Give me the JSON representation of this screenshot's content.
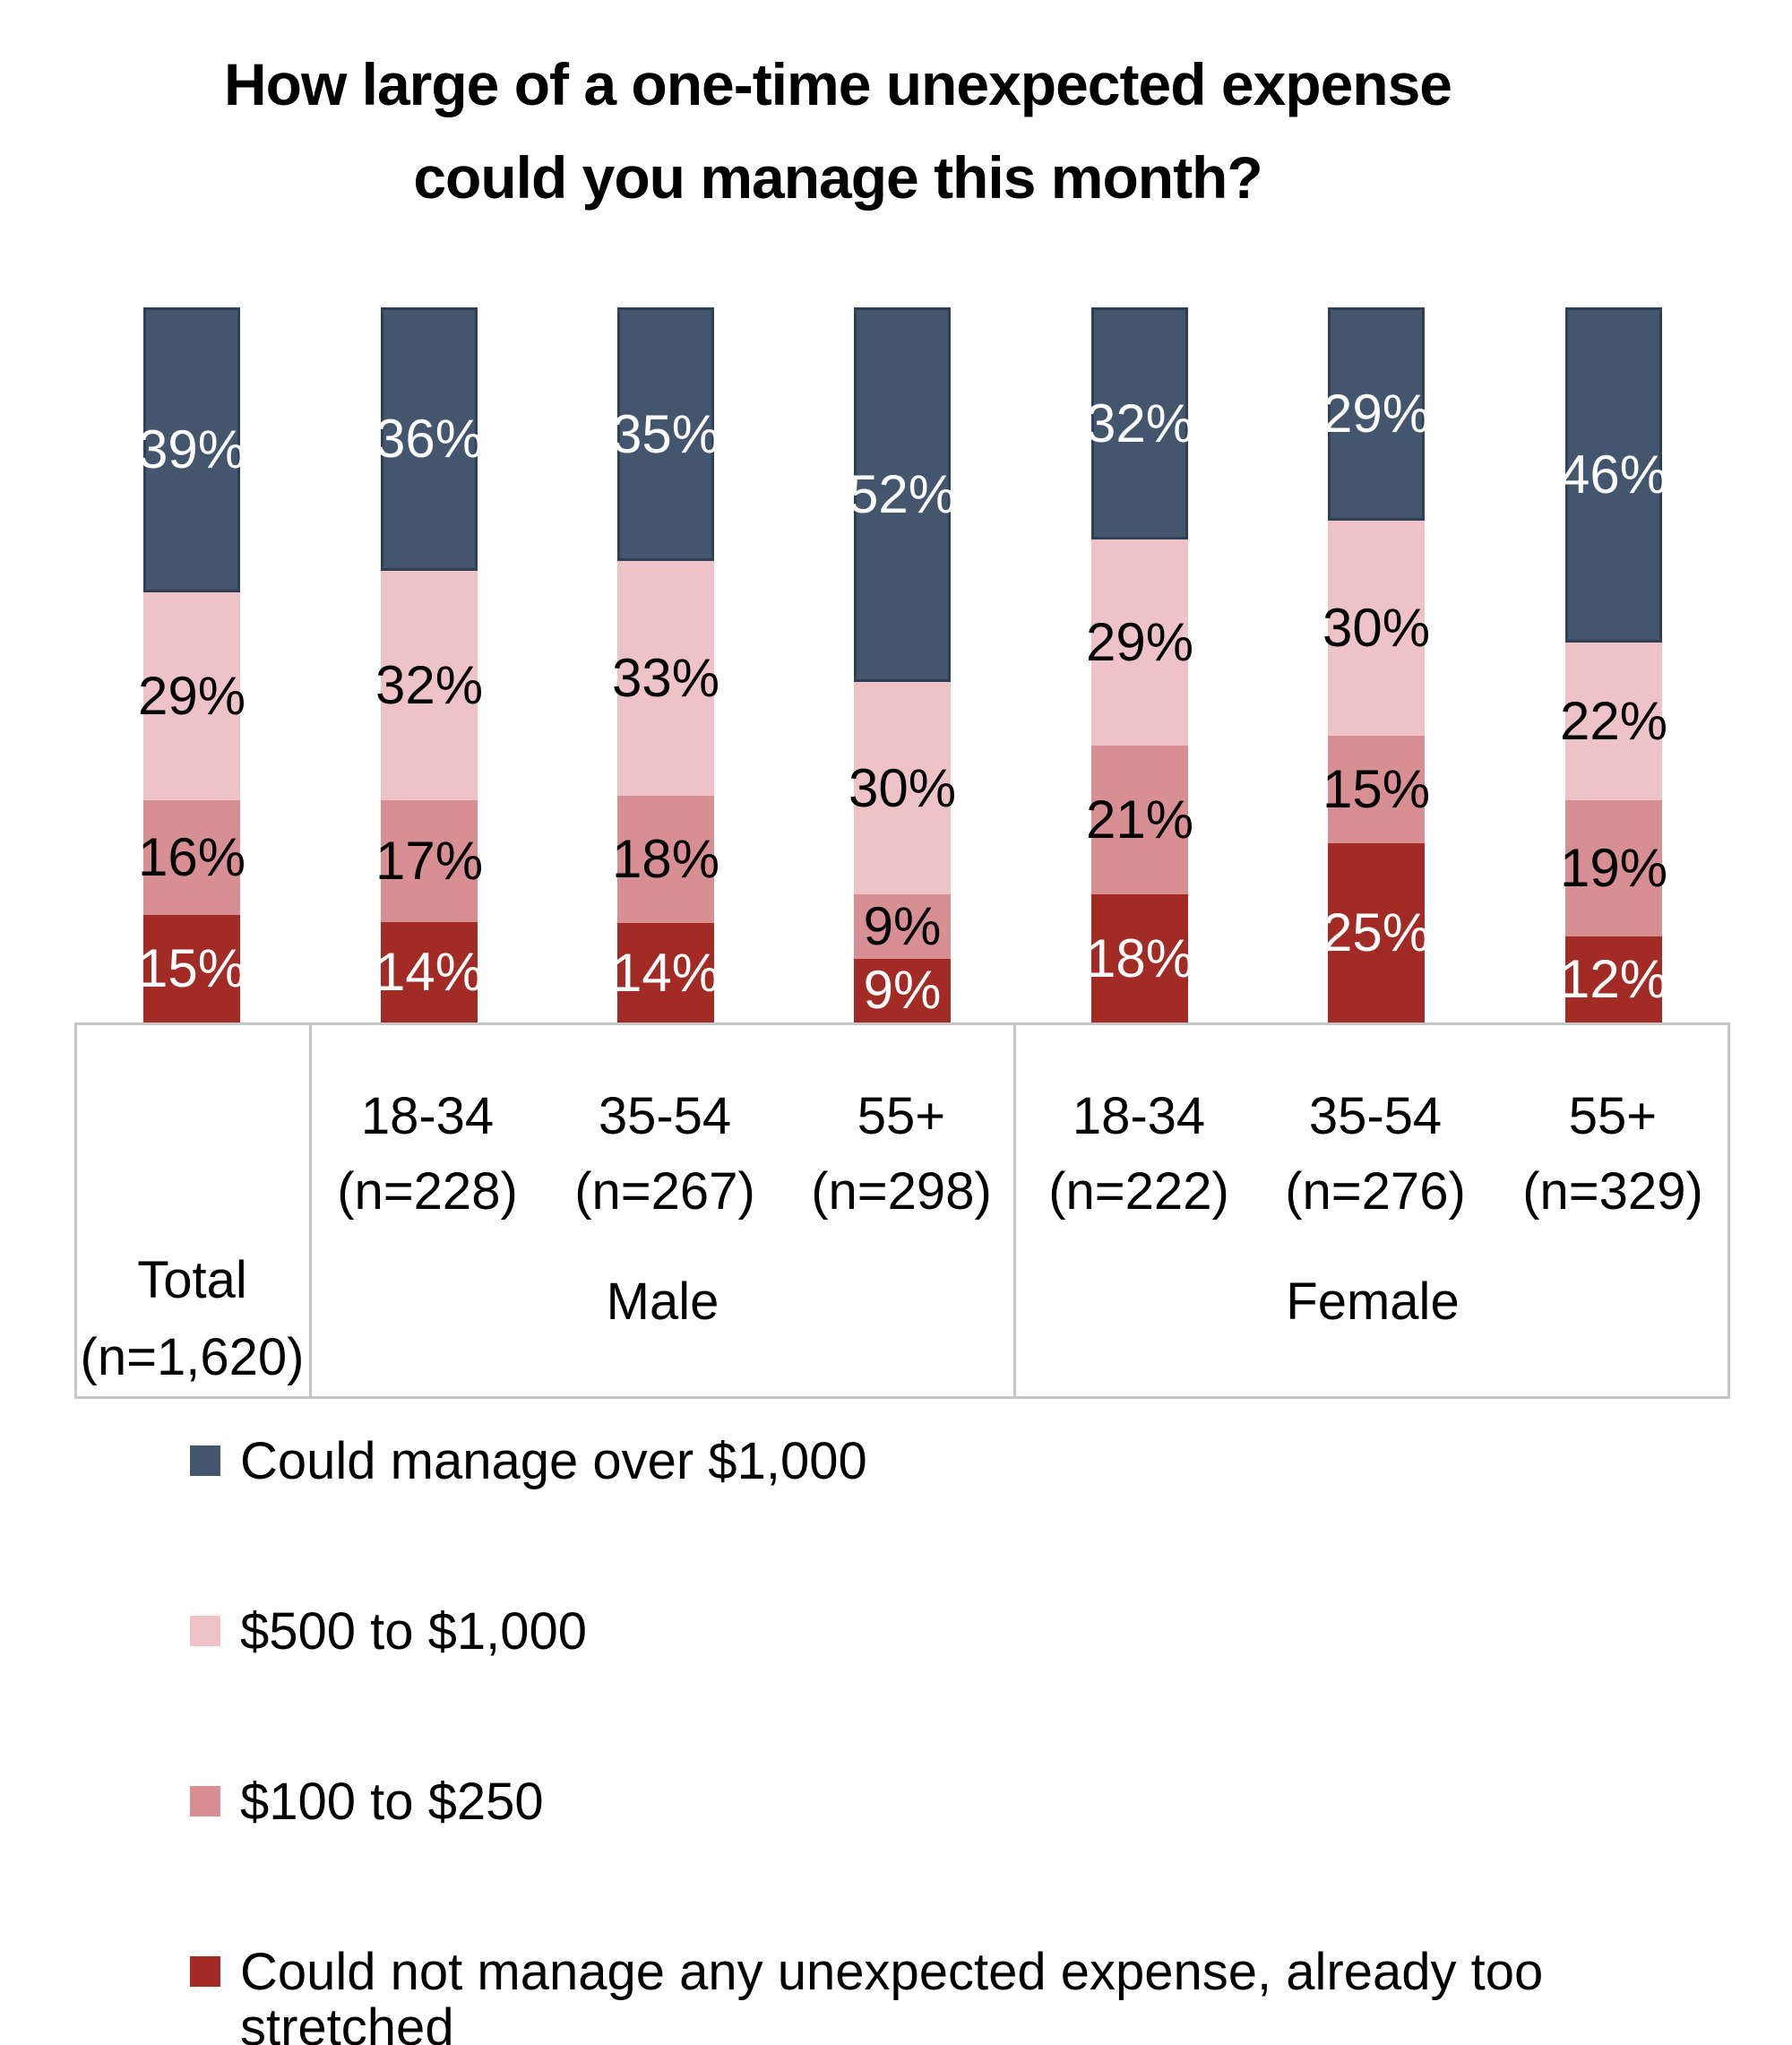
{
  "chart_data": {
    "type": "bar",
    "subtype": "stacked-100-percent",
    "title": "How large of a one-time unexpected expense could you manage this month?",
    "title_lines": [
      "How large of a one-time unexpected expense",
      "could you manage this month?"
    ],
    "value_suffix": "%",
    "ylim": [
      0,
      100
    ],
    "grid": false,
    "legend_position": "bottom-left",
    "series": [
      {
        "name": "Could manage over $1,000",
        "color": "#44566E",
        "border_color": "#2F3F55",
        "label_color": "#FFFFFF"
      },
      {
        "name": "$500 to $1,000",
        "color": "#EDC3C7",
        "label_color": "#000000"
      },
      {
        "name": "$100 to $250",
        "color": "#D78F94",
        "label_color": "#000000"
      },
      {
        "name": "Could not manage any unexpected expense, already too stretched",
        "color": "#A22B26",
        "label_color": "#FFFFFF"
      }
    ],
    "bars": [
      {
        "category": "Total (n=1,620)",
        "values": [
          39,
          29,
          16,
          15
        ]
      },
      {
        "category": "Male 18-34 (n=228)",
        "values": [
          36,
          32,
          17,
          14
        ]
      },
      {
        "category": "Male 35-54 (n=267)",
        "values": [
          35,
          33,
          18,
          14
        ]
      },
      {
        "category": "Male 55+ (n=298)",
        "values": [
          52,
          30,
          9,
          9
        ]
      },
      {
        "category": "Female 18-34 (n=222)",
        "values": [
          32,
          29,
          21,
          18
        ]
      },
      {
        "category": "Female 35-54 (n=276)",
        "values": [
          29,
          30,
          15,
          25
        ]
      },
      {
        "category": "Female 55+ (n=329)",
        "values": [
          46,
          22,
          19,
          12
        ]
      }
    ]
  },
  "axis_table": {
    "age_columns": [
      {
        "range": "18-34",
        "n": "(n=228)"
      },
      {
        "range": "35-54",
        "n": "(n=267)"
      },
      {
        "range": "55+",
        "n": "(n=298)"
      },
      {
        "range": "18-34",
        "n": "(n=222)"
      },
      {
        "range": "35-54",
        "n": "(n=276)"
      },
      {
        "range": "55+",
        "n": "(n=329)"
      }
    ],
    "groups": [
      {
        "label": "Total",
        "sub": "(n=1,620)"
      },
      {
        "label": "Male",
        "sub": ""
      },
      {
        "label": "Female",
        "sub": ""
      }
    ]
  },
  "colors": {
    "background": "#FFFFFF",
    "table_border": "#C6C6C6",
    "text": "#000000"
  }
}
